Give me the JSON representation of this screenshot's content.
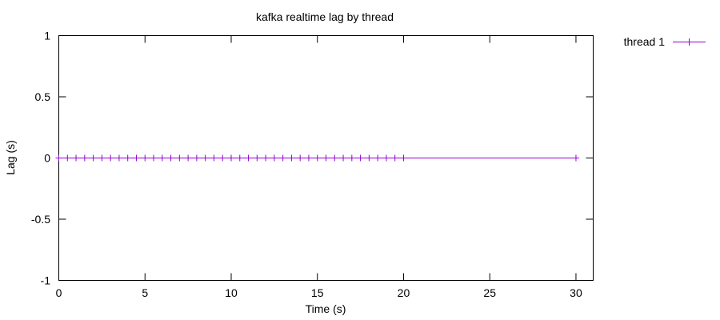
{
  "chart_data": {
    "type": "line",
    "title": "kafka realtime lag by thread",
    "xlabel": "Time (s)",
    "ylabel": "Lag (s)",
    "xlim": [
      0,
      31
    ],
    "ylim": [
      -1,
      1
    ],
    "xticks": [
      0,
      5,
      10,
      15,
      20,
      25,
      30
    ],
    "yticks": [
      -1,
      -0.5,
      0,
      0.5,
      1
    ],
    "xtick_labels": [
      "0",
      "5",
      "10",
      "15",
      "20",
      "25",
      "30"
    ],
    "ytick_labels": [
      "-1",
      "-0.5",
      "0",
      "0.5",
      "1"
    ],
    "grid": false,
    "legend_position": "top-right, outside plot",
    "series": [
      {
        "name": "thread 1",
        "color": "#9400d3",
        "marker": "plus",
        "x": [
          0,
          0.5,
          1,
          1.5,
          2,
          2.5,
          3,
          3.5,
          4,
          4.5,
          5,
          5.5,
          6,
          6.5,
          7,
          7.5,
          8,
          8.5,
          9,
          9.5,
          10,
          10.5,
          11,
          11.5,
          12,
          12.5,
          13,
          13.5,
          14,
          14.5,
          15,
          15.5,
          16,
          16.5,
          17,
          17.5,
          18,
          18.5,
          19,
          19.5,
          20,
          30
        ],
        "y": [
          0,
          0,
          0,
          0,
          0,
          0,
          0,
          0,
          0,
          0,
          0,
          0,
          0,
          0,
          0,
          0,
          0,
          0,
          0,
          0,
          0,
          0,
          0,
          0,
          0,
          0,
          0,
          0,
          0,
          0,
          0,
          0,
          0,
          0,
          0,
          0,
          0,
          0,
          0,
          0,
          0,
          0
        ]
      }
    ]
  }
}
